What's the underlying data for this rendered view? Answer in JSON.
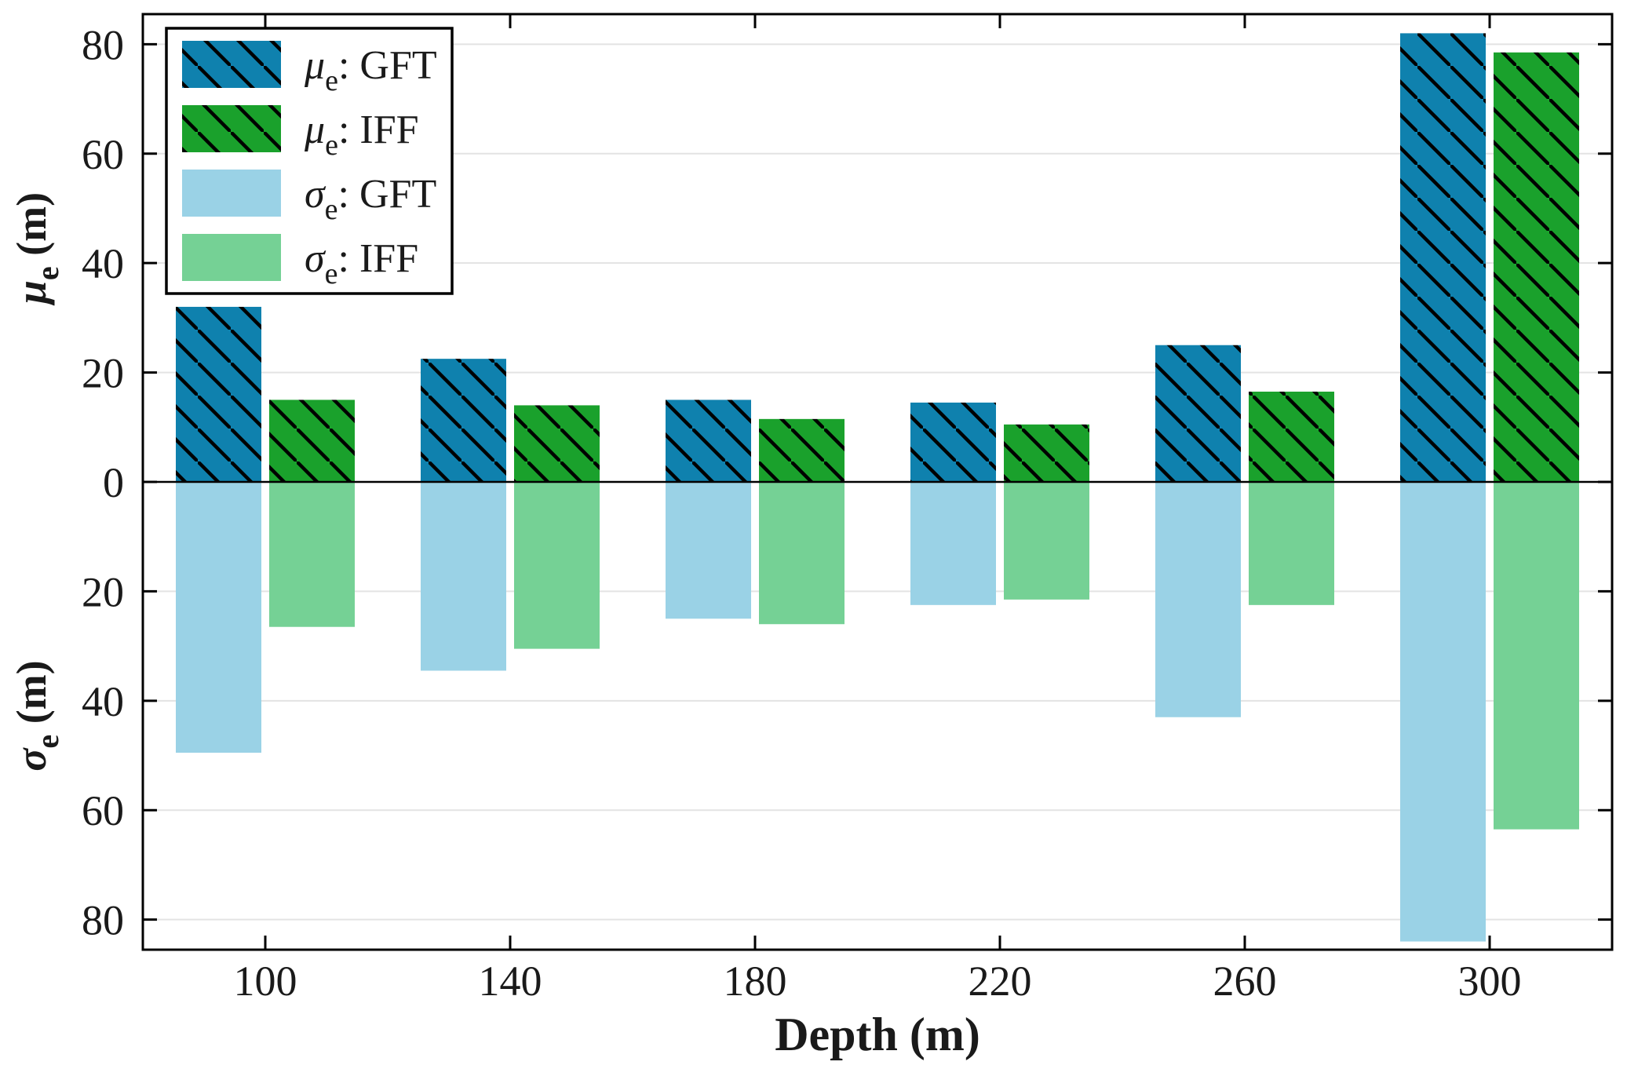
{
  "chart_data": {
    "type": "bar",
    "variant": "grouped-diverging",
    "title": "",
    "xlabel": "Depth (m)",
    "categories": [
      "100",
      "140",
      "180",
      "220",
      "260",
      "300"
    ],
    "category_values": [
      100,
      140,
      180,
      220,
      260,
      300
    ],
    "axis_top": {
      "label_sym": "μ",
      "label_sub": "e",
      "label_unit": " (m)",
      "label_plain": "mu_e (m)",
      "ticks": [
        0,
        20,
        40,
        60,
        80
      ],
      "lim": [
        0,
        85.5
      ],
      "direction": "up"
    },
    "axis_bottom": {
      "label_sym": "σ",
      "label_sub": "e",
      "label_unit": " (m)",
      "label_plain": "sigma_e (m)",
      "ticks": [
        20,
        40,
        60,
        80
      ],
      "lim": [
        0,
        85.5
      ],
      "direction": "down"
    },
    "grid": true,
    "legend_position": "top-left",
    "series": [
      {
        "name": "mu_e: GFT",
        "legend_sym": "μ",
        "legend_sub": "e",
        "legend_rest": ": GFT",
        "axis": "top",
        "hatch": true,
        "color": "#0f81ae",
        "values": [
          32,
          22.5,
          15,
          14.5,
          25,
          82
        ]
      },
      {
        "name": "mu_e: IFF",
        "legend_sym": "μ",
        "legend_sub": "e",
        "legend_rest": ": IFF",
        "axis": "top",
        "hatch": true,
        "color": "#1aa12c",
        "values": [
          15,
          14,
          11.5,
          10.5,
          16.5,
          78.5
        ]
      },
      {
        "name": "sigma_e: GFT",
        "legend_sym": "σ",
        "legend_sub": "e",
        "legend_rest": ": GFT",
        "axis": "bottom",
        "hatch": false,
        "color": "#9ad2e6",
        "values": [
          49.5,
          34.5,
          25,
          22.5,
          43,
          84
        ]
      },
      {
        "name": "sigma_e: IFF",
        "legend_sub": "e",
        "legend_sym": "σ",
        "legend_rest": ": IFF",
        "axis": "bottom",
        "hatch": false,
        "color": "#75d195",
        "values": [
          26.5,
          30.5,
          26,
          21.5,
          22.5,
          63.5
        ]
      }
    ],
    "colors": {
      "grid": "#e3e3e3",
      "axis": "#000000",
      "text": "#1a1a1a",
      "baseline": "#000000",
      "legend_border": "#000000",
      "legend_bg": "#ffffff",
      "hatch_line": "#000000"
    }
  }
}
